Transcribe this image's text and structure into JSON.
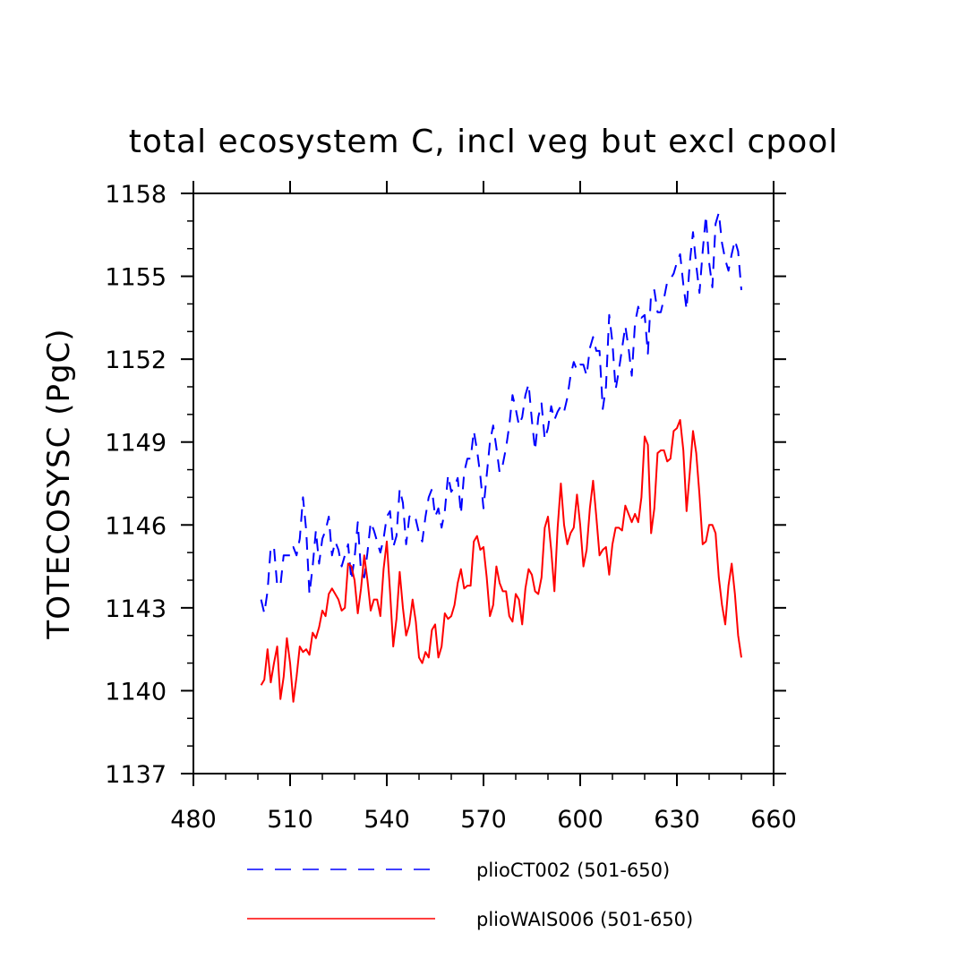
{
  "chart_data": {
    "type": "line",
    "title": "total ecosystem C, incl veg but excl cpool",
    "xlabel": "",
    "ylabel": "TOTECOSYSC  (PgC)",
    "xlim": [
      480,
      660
    ],
    "ylim": [
      1137,
      1158
    ],
    "xticks": [
      480,
      510,
      540,
      570,
      600,
      630,
      660
    ],
    "yticks": [
      1137,
      1140,
      1143,
      1146,
      1149,
      1152,
      1155,
      1158
    ],
    "xtick_labels": [
      "480",
      "510",
      "540",
      "570",
      "600",
      "630",
      "660"
    ],
    "ytick_labels": [
      "1137",
      "1140",
      "1143",
      "1146",
      "1149",
      "1152",
      "1155",
      "1158"
    ],
    "x": [
      501,
      502,
      503,
      504,
      505,
      506,
      507,
      508,
      509,
      510,
      511,
      512,
      513,
      514,
      515,
      516,
      517,
      518,
      519,
      520,
      521,
      522,
      523,
      524,
      525,
      526,
      527,
      528,
      529,
      530,
      531,
      532,
      533,
      534,
      535,
      536,
      537,
      538,
      539,
      540,
      541,
      542,
      543,
      544,
      545,
      546,
      547,
      548,
      549,
      550,
      551,
      552,
      553,
      554,
      555,
      556,
      557,
      558,
      559,
      560,
      561,
      562,
      563,
      564,
      565,
      566,
      567,
      568,
      569,
      570,
      571,
      572,
      573,
      574,
      575,
      576,
      577,
      578,
      579,
      580,
      581,
      582,
      583,
      584,
      585,
      586,
      587,
      588,
      589,
      590,
      591,
      592,
      593,
      594,
      595,
      596,
      597,
      598,
      599,
      600,
      601,
      602,
      603,
      604,
      605,
      606,
      607,
      608,
      609,
      610,
      611,
      612,
      613,
      614,
      615,
      616,
      617,
      618,
      619,
      620,
      621,
      622,
      623,
      624,
      625,
      626,
      627,
      628,
      629,
      630,
      631,
      632,
      633,
      634,
      635,
      636,
      637,
      638,
      639,
      640,
      641,
      642,
      643,
      644,
      645,
      646,
      647,
      648,
      649,
      650
    ],
    "series": [
      {
        "name": "plioCT002 (501-650)",
        "color": "#0000ff",
        "style": "dashed",
        "values": [
          1143.3,
          1142.8,
          1143.6,
          1145.2,
          1145.2,
          1143.8,
          1143.8,
          1144.9,
          1144.9,
          1144.9,
          1145.2,
          1144.9,
          1145.5,
          1147.0,
          1145.8,
          1143.5,
          1144.5,
          1145.8,
          1144.6,
          1145.5,
          1145.8,
          1146.3,
          1144.9,
          1145.4,
          1145.1,
          1144.5,
          1144.9,
          1145.3,
          1144.0,
          1144.8,
          1146.1,
          1144.3,
          1144.1,
          1145.0,
          1146.1,
          1145.8,
          1145.4,
          1145.0,
          1145.5,
          1146.3,
          1146.5,
          1145.2,
          1145.6,
          1147.3,
          1146.8,
          1145.3,
          1146.3,
          1146.4,
          1146.2,
          1145.7,
          1145.4,
          1146.3,
          1147.0,
          1147.3,
          1146.3,
          1146.6,
          1145.9,
          1146.5,
          1147.8,
          1147.2,
          1147.4,
          1147.7,
          1146.4,
          1147.9,
          1148.4,
          1148.4,
          1149.4,
          1148.7,
          1147.8,
          1146.6,
          1147.8,
          1149.0,
          1149.6,
          1148.8,
          1147.9,
          1148.2,
          1148.8,
          1149.6,
          1150.7,
          1150.2,
          1149.6,
          1149.9,
          1150.7,
          1151.1,
          1149.8,
          1148.7,
          1149.9,
          1150.4,
          1149.1,
          1149.5,
          1150.3,
          1149.8,
          1150.1,
          1150.3,
          1150.1,
          1150.6,
          1151.4,
          1151.9,
          1151.6,
          1151.8,
          1151.8,
          1151.4,
          1152.4,
          1152.8,
          1152.3,
          1152.3,
          1150.2,
          1151.0,
          1153.6,
          1152.6,
          1150.9,
          1151.6,
          1152.4,
          1153.2,
          1152.4,
          1151.4,
          1153.3,
          1153.9,
          1153.5,
          1153.6,
          1152.2,
          1154.4,
          1154.5,
          1153.7,
          1153.7,
          1154.2,
          1154.8,
          1154.9,
          1155.1,
          1155.5,
          1155.8,
          1154.7,
          1153.8,
          1155.5,
          1156.6,
          1155.4,
          1154.4,
          1155.9,
          1157.2,
          1155.5,
          1154.6,
          1156.9,
          1157.3,
          1156.2,
          1155.6,
          1155.2,
          1155.8,
          1156.3,
          1155.9,
          1154.5
        ]
      },
      {
        "name": "plioWAIS006 (501-650)",
        "color": "#ff0000",
        "style": "solid",
        "values": [
          1140.2,
          1140.4,
          1141.5,
          1140.3,
          1141.0,
          1141.6,
          1139.7,
          1140.5,
          1141.9,
          1141.0,
          1139.6,
          1140.5,
          1141.6,
          1141.4,
          1141.5,
          1141.3,
          1142.1,
          1141.9,
          1142.3,
          1142.9,
          1142.7,
          1143.5,
          1143.7,
          1143.5,
          1143.3,
          1142.9,
          1143.0,
          1144.6,
          1144.5,
          1144.0,
          1142.8,
          1143.7,
          1144.9,
          1144.0,
          1142.9,
          1143.3,
          1143.3,
          1142.7,
          1144.4,
          1145.4,
          1143.6,
          1141.6,
          1142.6,
          1144.3,
          1143.0,
          1142.0,
          1142.4,
          1143.3,
          1142.5,
          1141.2,
          1141.0,
          1141.4,
          1141.2,
          1142.2,
          1142.4,
          1141.2,
          1141.6,
          1142.8,
          1142.6,
          1142.7,
          1143.1,
          1143.9,
          1144.4,
          1143.7,
          1143.8,
          1143.8,
          1145.4,
          1145.6,
          1145.1,
          1145.2,
          1144.1,
          1142.7,
          1143.1,
          1144.5,
          1143.9,
          1143.6,
          1143.6,
          1142.7,
          1142.5,
          1143.5,
          1143.3,
          1142.4,
          1143.7,
          1144.4,
          1144.2,
          1143.6,
          1143.5,
          1144.1,
          1145.9,
          1146.3,
          1145.1,
          1143.6,
          1145.9,
          1147.5,
          1146.0,
          1145.3,
          1145.7,
          1145.9,
          1147.1,
          1146.0,
          1144.5,
          1145.1,
          1146.6,
          1147.6,
          1146.3,
          1144.9,
          1145.1,
          1145.2,
          1144.2,
          1145.3,
          1145.9,
          1145.9,
          1145.8,
          1146.7,
          1146.4,
          1146.1,
          1146.4,
          1146.1,
          1147.0,
          1149.2,
          1148.9,
          1145.7,
          1146.6,
          1148.6,
          1148.7,
          1148.7,
          1148.3,
          1148.4,
          1149.4,
          1149.5,
          1149.8,
          1148.7,
          1146.5,
          1147.9,
          1149.4,
          1148.6,
          1147.1,
          1145.3,
          1145.4,
          1146.0,
          1146.0,
          1145.7,
          1144.1,
          1143.1,
          1142.4,
          1143.8,
          1144.6,
          1143.5,
          1142.0,
          1141.2
        ]
      }
    ],
    "legend": [
      {
        "label": "plioCT002 (501-650)",
        "color": "#0000ff",
        "style": "dashed"
      },
      {
        "label": "plioWAIS006 (501-650)",
        "color": "#ff0000",
        "style": "solid"
      }
    ],
    "legend_position": "bottom-center",
    "grid": false
  }
}
